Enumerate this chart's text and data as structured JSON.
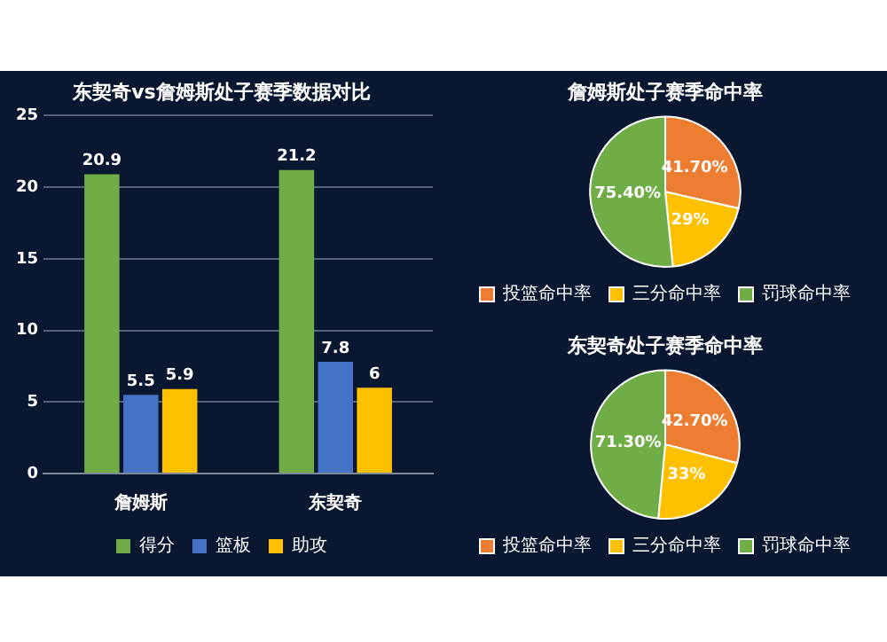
{
  "chart_data": [
    {
      "type": "bar",
      "title": "东契奇vs詹姆斯处子赛季数据对比",
      "categories": [
        "詹姆斯",
        "东契奇"
      ],
      "series": [
        {
          "name": "得分",
          "color": "#70ad47",
          "values": [
            20.9,
            21.2
          ]
        },
        {
          "name": "篮板",
          "color": "#4472c4",
          "values": [
            5.5,
            7.8
          ]
        },
        {
          "name": "助攻",
          "color": "#ffc000",
          "values": [
            5.9,
            6
          ]
        }
      ],
      "ylim": [
        0,
        25
      ],
      "yticks": [
        0,
        5,
        10,
        15,
        20,
        25
      ],
      "grid": "y",
      "legend": "bottom",
      "data_labels": true
    },
    {
      "type": "pie",
      "title": "詹姆斯处子赛季命中率",
      "categories": [
        "投篮命中率",
        "三分命中率",
        "罚球命中率"
      ],
      "values": [
        41.7,
        29,
        75.4
      ],
      "colors": [
        "#ed7d31",
        "#ffc000",
        "#70ad47"
      ],
      "value_labels": [
        "41.70%",
        "29%",
        "75.40%"
      ],
      "legend": "bottom"
    },
    {
      "type": "pie",
      "title": "东契奇处子赛季命中率",
      "categories": [
        "投篮命中率",
        "三分命中率",
        "罚球命中率"
      ],
      "values": [
        42.7,
        33,
        71.3
      ],
      "colors": [
        "#ed7d31",
        "#ffc000",
        "#70ad47"
      ],
      "value_labels": [
        "42.70%",
        "33%",
        "71.30%"
      ],
      "legend": "bottom"
    }
  ]
}
